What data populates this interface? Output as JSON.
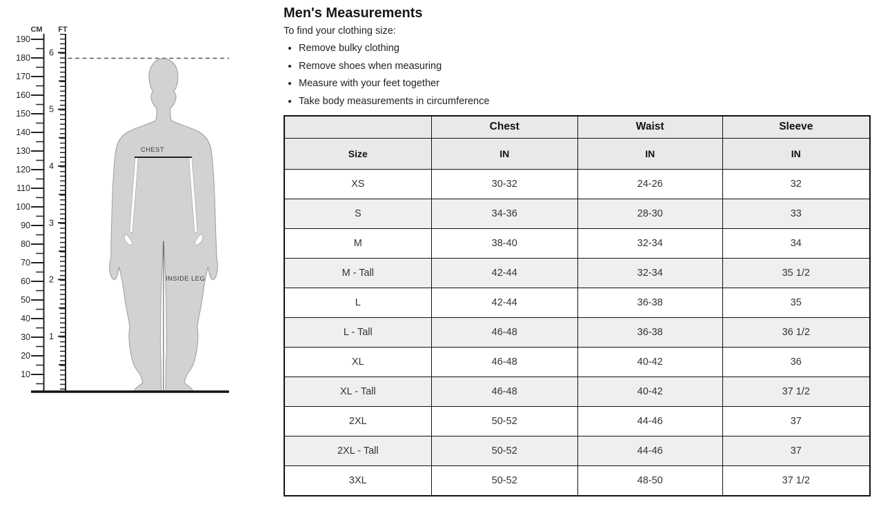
{
  "page": {
    "title": "Men's Measurements",
    "intro": "To find your clothing size:",
    "instructions": [
      "Remove bulky clothing",
      "Remove shoes when measuring",
      "Measure with your feet together",
      "Take body measurements in circumference"
    ]
  },
  "diagram": {
    "cm_label": "CM",
    "ft_label": "FT",
    "cm_ticks": [
      190,
      180,
      170,
      160,
      150,
      140,
      130,
      120,
      110,
      100,
      90,
      80,
      70,
      60,
      50,
      40,
      30,
      20,
      10
    ],
    "ft_ticks": [
      6,
      5,
      4,
      3,
      2,
      1
    ],
    "chest_label": "CHEST",
    "inside_leg_label": "INSIDE LEG"
  },
  "table": {
    "header_row1": [
      "",
      "Chest",
      "Waist",
      "Sleeve"
    ],
    "header_row2": [
      "Size",
      "IN",
      "IN",
      "IN"
    ],
    "rows": [
      {
        "size": "XS",
        "chest": "30-32",
        "waist": "24-26",
        "sleeve": "32"
      },
      {
        "size": "S",
        "chest": "34-36",
        "waist": "28-30",
        "sleeve": "33"
      },
      {
        "size": "M",
        "chest": "38-40",
        "waist": "32-34",
        "sleeve": "34"
      },
      {
        "size": "M - Tall",
        "chest": "42-44",
        "waist": "32-34",
        "sleeve": "35 1/2"
      },
      {
        "size": "L",
        "chest": "42-44",
        "waist": "36-38",
        "sleeve": "35"
      },
      {
        "size": "L - Tall",
        "chest": "46-48",
        "waist": "36-38",
        "sleeve": "36 1/2"
      },
      {
        "size": "XL",
        "chest": "46-48",
        "waist": "40-42",
        "sleeve": "36"
      },
      {
        "size": "XL - Tall",
        "chest": "46-48",
        "waist": "40-42",
        "sleeve": "37 1/2"
      },
      {
        "size": "2XL",
        "chest": "50-52",
        "waist": "44-46",
        "sleeve": "37"
      },
      {
        "size": "2XL - Tall",
        "chest": "50-52",
        "waist": "44-46",
        "sleeve": "37"
      },
      {
        "size": "3XL",
        "chest": "50-52",
        "waist": "48-50",
        "sleeve": "37 1/2"
      }
    ]
  },
  "theme": {
    "header_bg": "#e9e9e9",
    "stripe_bg": "#efefef",
    "border_color": "#101010",
    "text_color": "#1c1c1c",
    "silhouette_fill": "#d2d2d2",
    "silhouette_stroke": "#9b9b9b"
  }
}
